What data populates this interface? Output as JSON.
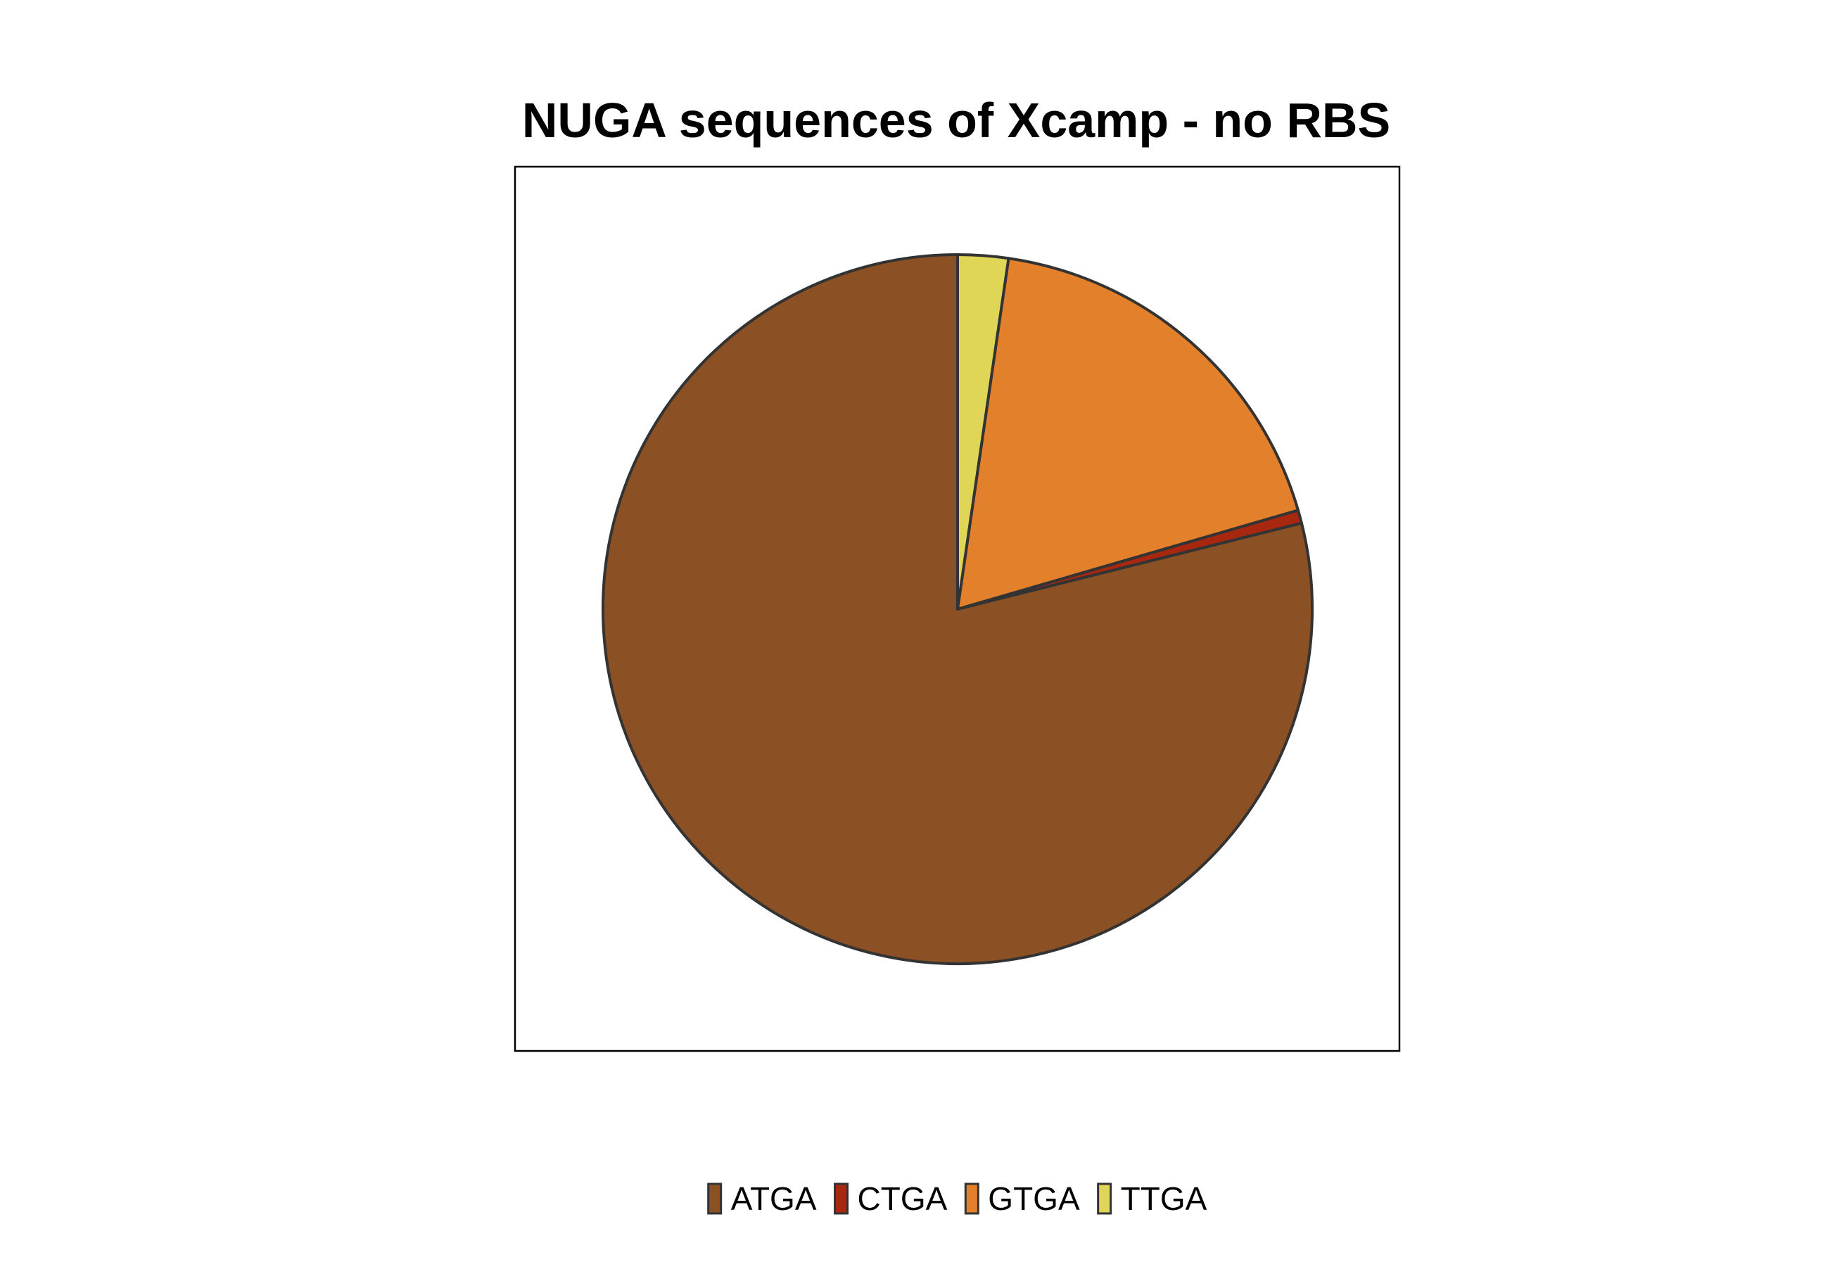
{
  "chart_data": {
    "type": "pie",
    "title": "NUGA sequences of Xcamp - no RBS",
    "categories": [
      "ATGA",
      "CTGA",
      "GTGA",
      "TTGA"
    ],
    "values": [
      78.9,
      0.6,
      18.2,
      2.3
    ],
    "value_unit": "percent (estimated)",
    "slice_order": "clockwise from 12 o'clock: TTGA, GTGA, CTGA, ATGA",
    "colors": [
      "#8B5023",
      "#A8270F",
      "#E2802B",
      "#DFD556"
    ],
    "legend_position": "bottom",
    "outline_color": "#333333",
    "panel_border": true
  }
}
